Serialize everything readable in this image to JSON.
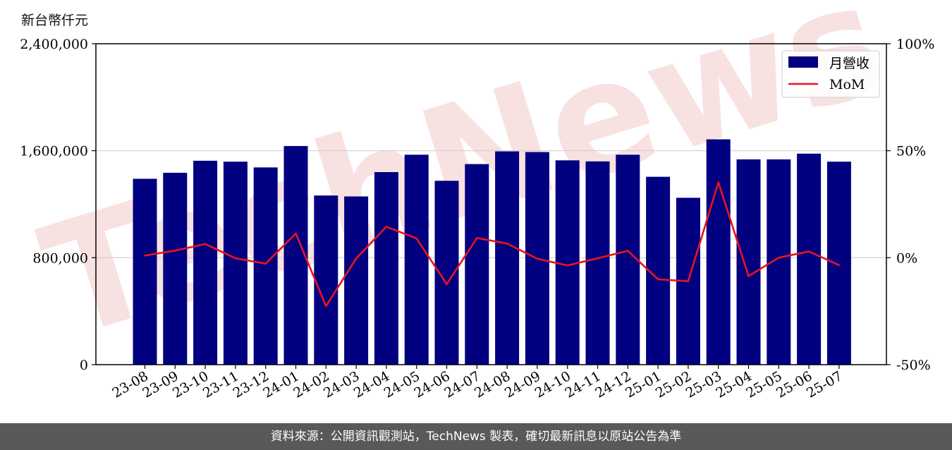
{
  "unit_label": "新台幣仟元",
  "footer": "資料來源：公開資訊觀測站，TechNews 製表，確切最新訊息以原站公告為準",
  "watermark": "TechNews",
  "colors": {
    "bar": "#000080",
    "line": "#e8141c",
    "grid": "#d0d0d0",
    "footer_bg": "#595959",
    "watermark": "#f3c8c8"
  },
  "chart_data": {
    "type": "bar",
    "categories": [
      "23-08",
      "23-09",
      "23-10",
      "23-11",
      "23-12",
      "24-01",
      "24-02",
      "24-03",
      "24-04",
      "24-05",
      "24-06",
      "24-07",
      "24-08",
      "24-09",
      "24-10",
      "24-11",
      "24-12",
      "25-01",
      "25-02",
      "25-03",
      "25-04",
      "25-05",
      "25-06",
      "25-07"
    ],
    "series": [
      {
        "name": "月營收",
        "type": "bar",
        "axis": "left",
        "values": [
          1390000,
          1435000,
          1525000,
          1518000,
          1475000,
          1635000,
          1265000,
          1258000,
          1440000,
          1570000,
          1375000,
          1500000,
          1595000,
          1590000,
          1528000,
          1520000,
          1570000,
          1405000,
          1248000,
          1685000,
          1535000,
          1535000,
          1578000,
          1518000
        ]
      },
      {
        "name": "MoM",
        "type": "line",
        "axis": "right",
        "values": [
          1.0,
          3.3,
          6.4,
          -0.3,
          -2.8,
          11.3,
          -22.6,
          -0.4,
          14.5,
          9.0,
          -12.4,
          9.2,
          6.6,
          -0.5,
          -3.6,
          -0.3,
          3.2,
          -10.1,
          -11.0,
          35.2,
          -8.6,
          0.0,
          2.9,
          -3.5
        ]
      }
    ],
    "ylim_left": [
      0,
      2400000
    ],
    "yticks_left": [
      "0",
      "800,000",
      "1,600,000",
      "2,400,000"
    ],
    "ytick_values_left": [
      0,
      800000,
      1600000,
      2400000
    ],
    "ylim_right": [
      -50,
      100
    ],
    "yticks_right": [
      "-50%",
      "0%",
      "50%",
      "100%"
    ],
    "ytick_values_right": [
      -50,
      0,
      50,
      100
    ],
    "grid": "horizontal",
    "legend_position": "top-right"
  }
}
